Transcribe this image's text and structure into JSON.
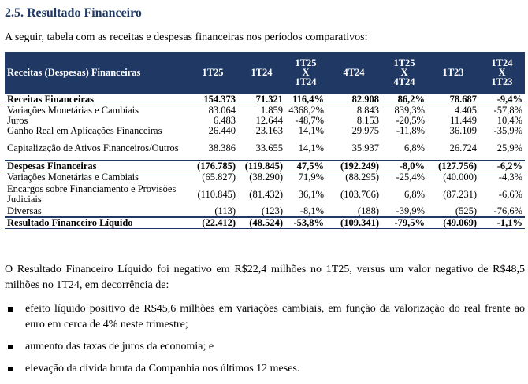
{
  "section_title": "2.5. Resultado Financeiro",
  "intro": "A seguir, tabela com as receitas e despesas financeiras nos períodos comparativos:",
  "table": {
    "headers": [
      [
        "Receitas (Despesas) Financeiras"
      ],
      [
        "1T25"
      ],
      [
        "1T24"
      ],
      [
        "1T25",
        "X",
        "1T24"
      ],
      [
        "4T24"
      ],
      [
        "1T25",
        "X",
        "4T24"
      ],
      [
        "1T23"
      ],
      [
        "1T24",
        "X",
        "1T23"
      ]
    ],
    "rows": [
      {
        "cells": [
          "Receitas Financeiras",
          "154.373",
          "71.321",
          "116,4%",
          "82.908",
          "86,2%",
          "78.687",
          "-9,4%"
        ],
        "total": true
      },
      {
        "cells": [
          "Variações Monetárias e Cambiais",
          "83.064",
          "1.859",
          "4368,2%",
          "8.843",
          "839,3%",
          "4.405",
          "-57,8%"
        ]
      },
      {
        "cells": [
          "Juros",
          "6.483",
          "12.644",
          "-48,7%",
          "8.153",
          "-20,5%",
          "11.449",
          "10,4%"
        ]
      },
      {
        "cells": [
          "Ganho Real em Aplicações Financeiras",
          "26.440",
          "23.163",
          "14,1%",
          "29.975",
          "-11,8%",
          "36.109",
          "-35,9%"
        ]
      },
      {
        "cells": [
          "Capitalização de Ativos Financeiros/Outros",
          "38.386",
          "33.655",
          "14,1%",
          "35.937",
          "6,8%",
          "26.724",
          "25,9%"
        ],
        "tall": true
      },
      {
        "cells": [
          "Despesas Financeiras",
          "(176.785)",
          "(119.845)",
          "47,5%",
          "(192.249)",
          "-8,0%",
          "(127.756)",
          "-6,2%"
        ],
        "total": true
      },
      {
        "cells": [
          "Variações Monetárias e Cambiais",
          "(65.827)",
          "(38.290)",
          "71,9%",
          "(88.295)",
          "-25,4%",
          "(40.000)",
          "-4,3%"
        ]
      },
      {
        "cells": [
          "Encargos sobre Financiamento e Provisões Judiciais",
          "(110.845)",
          "(81.432)",
          "36,1%",
          "(103.766)",
          "6,8%",
          "(87.231)",
          "-6,6%"
        ],
        "tall": true
      },
      {
        "cells": [
          "Diversas",
          "(113)",
          "(123)",
          "-8,1%",
          "(188)",
          "-39,9%",
          "(525)",
          "-76,6%"
        ]
      },
      {
        "cells": [
          "Resultado Financeiro Líquido",
          "(22.412)",
          "(48.524)",
          "-53,8%",
          "(109.341)",
          "-79,5%",
          "(49.069)",
          "-1,1%"
        ],
        "total": true
      }
    ]
  },
  "paragraph": "O Resultado Financeiro Líquido foi negativo em R$22,4 milhões no 1T25, versus um valor negativo de R$48,5 milhões no 1T24, em decorrência de:",
  "bullets": [
    "efeito líquido positivo de R$45,6 milhões em variações cambiais, em função da valorização do real frente ao euro em cerca de 4% neste trimestre;",
    "aumento das taxas de juros da economia; e",
    "elevação da dívida bruta da Companhia nos últimos 12 meses."
  ]
}
